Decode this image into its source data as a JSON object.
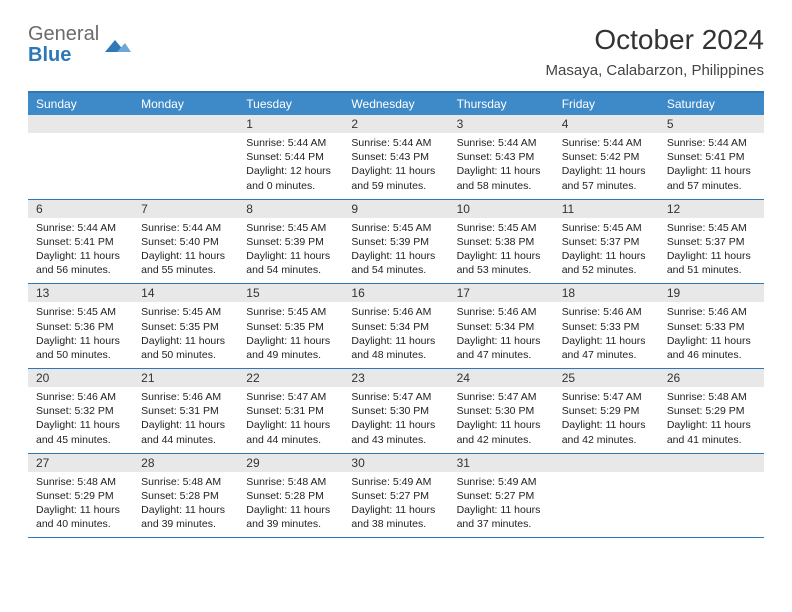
{
  "brand": {
    "word1": "General",
    "word2": "Blue",
    "word1_color": "#6b6b6b",
    "word2_color": "#2e78b7",
    "mark_color": "#2e78b7"
  },
  "header": {
    "month_title": "October 2024",
    "location": "Masaya, Calabarzon, Philippines"
  },
  "style": {
    "header_bar_color": "#3e8ac8",
    "rule_color": "#2e78b7",
    "daynum_bg": "#e8e8e8",
    "body_font_size": 10.5,
    "dayname_font_size": 12,
    "title_font_size": 28,
    "location_font_size": 15
  },
  "daynames": [
    "Sunday",
    "Monday",
    "Tuesday",
    "Wednesday",
    "Thursday",
    "Friday",
    "Saturday"
  ],
  "weeks": [
    [
      {
        "empty": true
      },
      {
        "empty": true
      },
      {
        "num": "1",
        "sunrise": "5:44 AM",
        "sunset": "5:44 PM",
        "daylight": "12 hours and 0 minutes."
      },
      {
        "num": "2",
        "sunrise": "5:44 AM",
        "sunset": "5:43 PM",
        "daylight": "11 hours and 59 minutes."
      },
      {
        "num": "3",
        "sunrise": "5:44 AM",
        "sunset": "5:43 PM",
        "daylight": "11 hours and 58 minutes."
      },
      {
        "num": "4",
        "sunrise": "5:44 AM",
        "sunset": "5:42 PM",
        "daylight": "11 hours and 57 minutes."
      },
      {
        "num": "5",
        "sunrise": "5:44 AM",
        "sunset": "5:41 PM",
        "daylight": "11 hours and 57 minutes."
      }
    ],
    [
      {
        "num": "6",
        "sunrise": "5:44 AM",
        "sunset": "5:41 PM",
        "daylight": "11 hours and 56 minutes."
      },
      {
        "num": "7",
        "sunrise": "5:44 AM",
        "sunset": "5:40 PM",
        "daylight": "11 hours and 55 minutes."
      },
      {
        "num": "8",
        "sunrise": "5:45 AM",
        "sunset": "5:39 PM",
        "daylight": "11 hours and 54 minutes."
      },
      {
        "num": "9",
        "sunrise": "5:45 AM",
        "sunset": "5:39 PM",
        "daylight": "11 hours and 54 minutes."
      },
      {
        "num": "10",
        "sunrise": "5:45 AM",
        "sunset": "5:38 PM",
        "daylight": "11 hours and 53 minutes."
      },
      {
        "num": "11",
        "sunrise": "5:45 AM",
        "sunset": "5:37 PM",
        "daylight": "11 hours and 52 minutes."
      },
      {
        "num": "12",
        "sunrise": "5:45 AM",
        "sunset": "5:37 PM",
        "daylight": "11 hours and 51 minutes."
      }
    ],
    [
      {
        "num": "13",
        "sunrise": "5:45 AM",
        "sunset": "5:36 PM",
        "daylight": "11 hours and 50 minutes."
      },
      {
        "num": "14",
        "sunrise": "5:45 AM",
        "sunset": "5:35 PM",
        "daylight": "11 hours and 50 minutes."
      },
      {
        "num": "15",
        "sunrise": "5:45 AM",
        "sunset": "5:35 PM",
        "daylight": "11 hours and 49 minutes."
      },
      {
        "num": "16",
        "sunrise": "5:46 AM",
        "sunset": "5:34 PM",
        "daylight": "11 hours and 48 minutes."
      },
      {
        "num": "17",
        "sunrise": "5:46 AM",
        "sunset": "5:34 PM",
        "daylight": "11 hours and 47 minutes."
      },
      {
        "num": "18",
        "sunrise": "5:46 AM",
        "sunset": "5:33 PM",
        "daylight": "11 hours and 47 minutes."
      },
      {
        "num": "19",
        "sunrise": "5:46 AM",
        "sunset": "5:33 PM",
        "daylight": "11 hours and 46 minutes."
      }
    ],
    [
      {
        "num": "20",
        "sunrise": "5:46 AM",
        "sunset": "5:32 PM",
        "daylight": "11 hours and 45 minutes."
      },
      {
        "num": "21",
        "sunrise": "5:46 AM",
        "sunset": "5:31 PM",
        "daylight": "11 hours and 44 minutes."
      },
      {
        "num": "22",
        "sunrise": "5:47 AM",
        "sunset": "5:31 PM",
        "daylight": "11 hours and 44 minutes."
      },
      {
        "num": "23",
        "sunrise": "5:47 AM",
        "sunset": "5:30 PM",
        "daylight": "11 hours and 43 minutes."
      },
      {
        "num": "24",
        "sunrise": "5:47 AM",
        "sunset": "5:30 PM",
        "daylight": "11 hours and 42 minutes."
      },
      {
        "num": "25",
        "sunrise": "5:47 AM",
        "sunset": "5:29 PM",
        "daylight": "11 hours and 42 minutes."
      },
      {
        "num": "26",
        "sunrise": "5:48 AM",
        "sunset": "5:29 PM",
        "daylight": "11 hours and 41 minutes."
      }
    ],
    [
      {
        "num": "27",
        "sunrise": "5:48 AM",
        "sunset": "5:29 PM",
        "daylight": "11 hours and 40 minutes."
      },
      {
        "num": "28",
        "sunrise": "5:48 AM",
        "sunset": "5:28 PM",
        "daylight": "11 hours and 39 minutes."
      },
      {
        "num": "29",
        "sunrise": "5:48 AM",
        "sunset": "5:28 PM",
        "daylight": "11 hours and 39 minutes."
      },
      {
        "num": "30",
        "sunrise": "5:49 AM",
        "sunset": "5:27 PM",
        "daylight": "11 hours and 38 minutes."
      },
      {
        "num": "31",
        "sunrise": "5:49 AM",
        "sunset": "5:27 PM",
        "daylight": "11 hours and 37 minutes."
      },
      {
        "empty": true
      },
      {
        "empty": true
      }
    ]
  ],
  "labels": {
    "sunrise_prefix": "Sunrise: ",
    "sunset_prefix": "Sunset: ",
    "daylight_prefix": "Daylight: "
  }
}
